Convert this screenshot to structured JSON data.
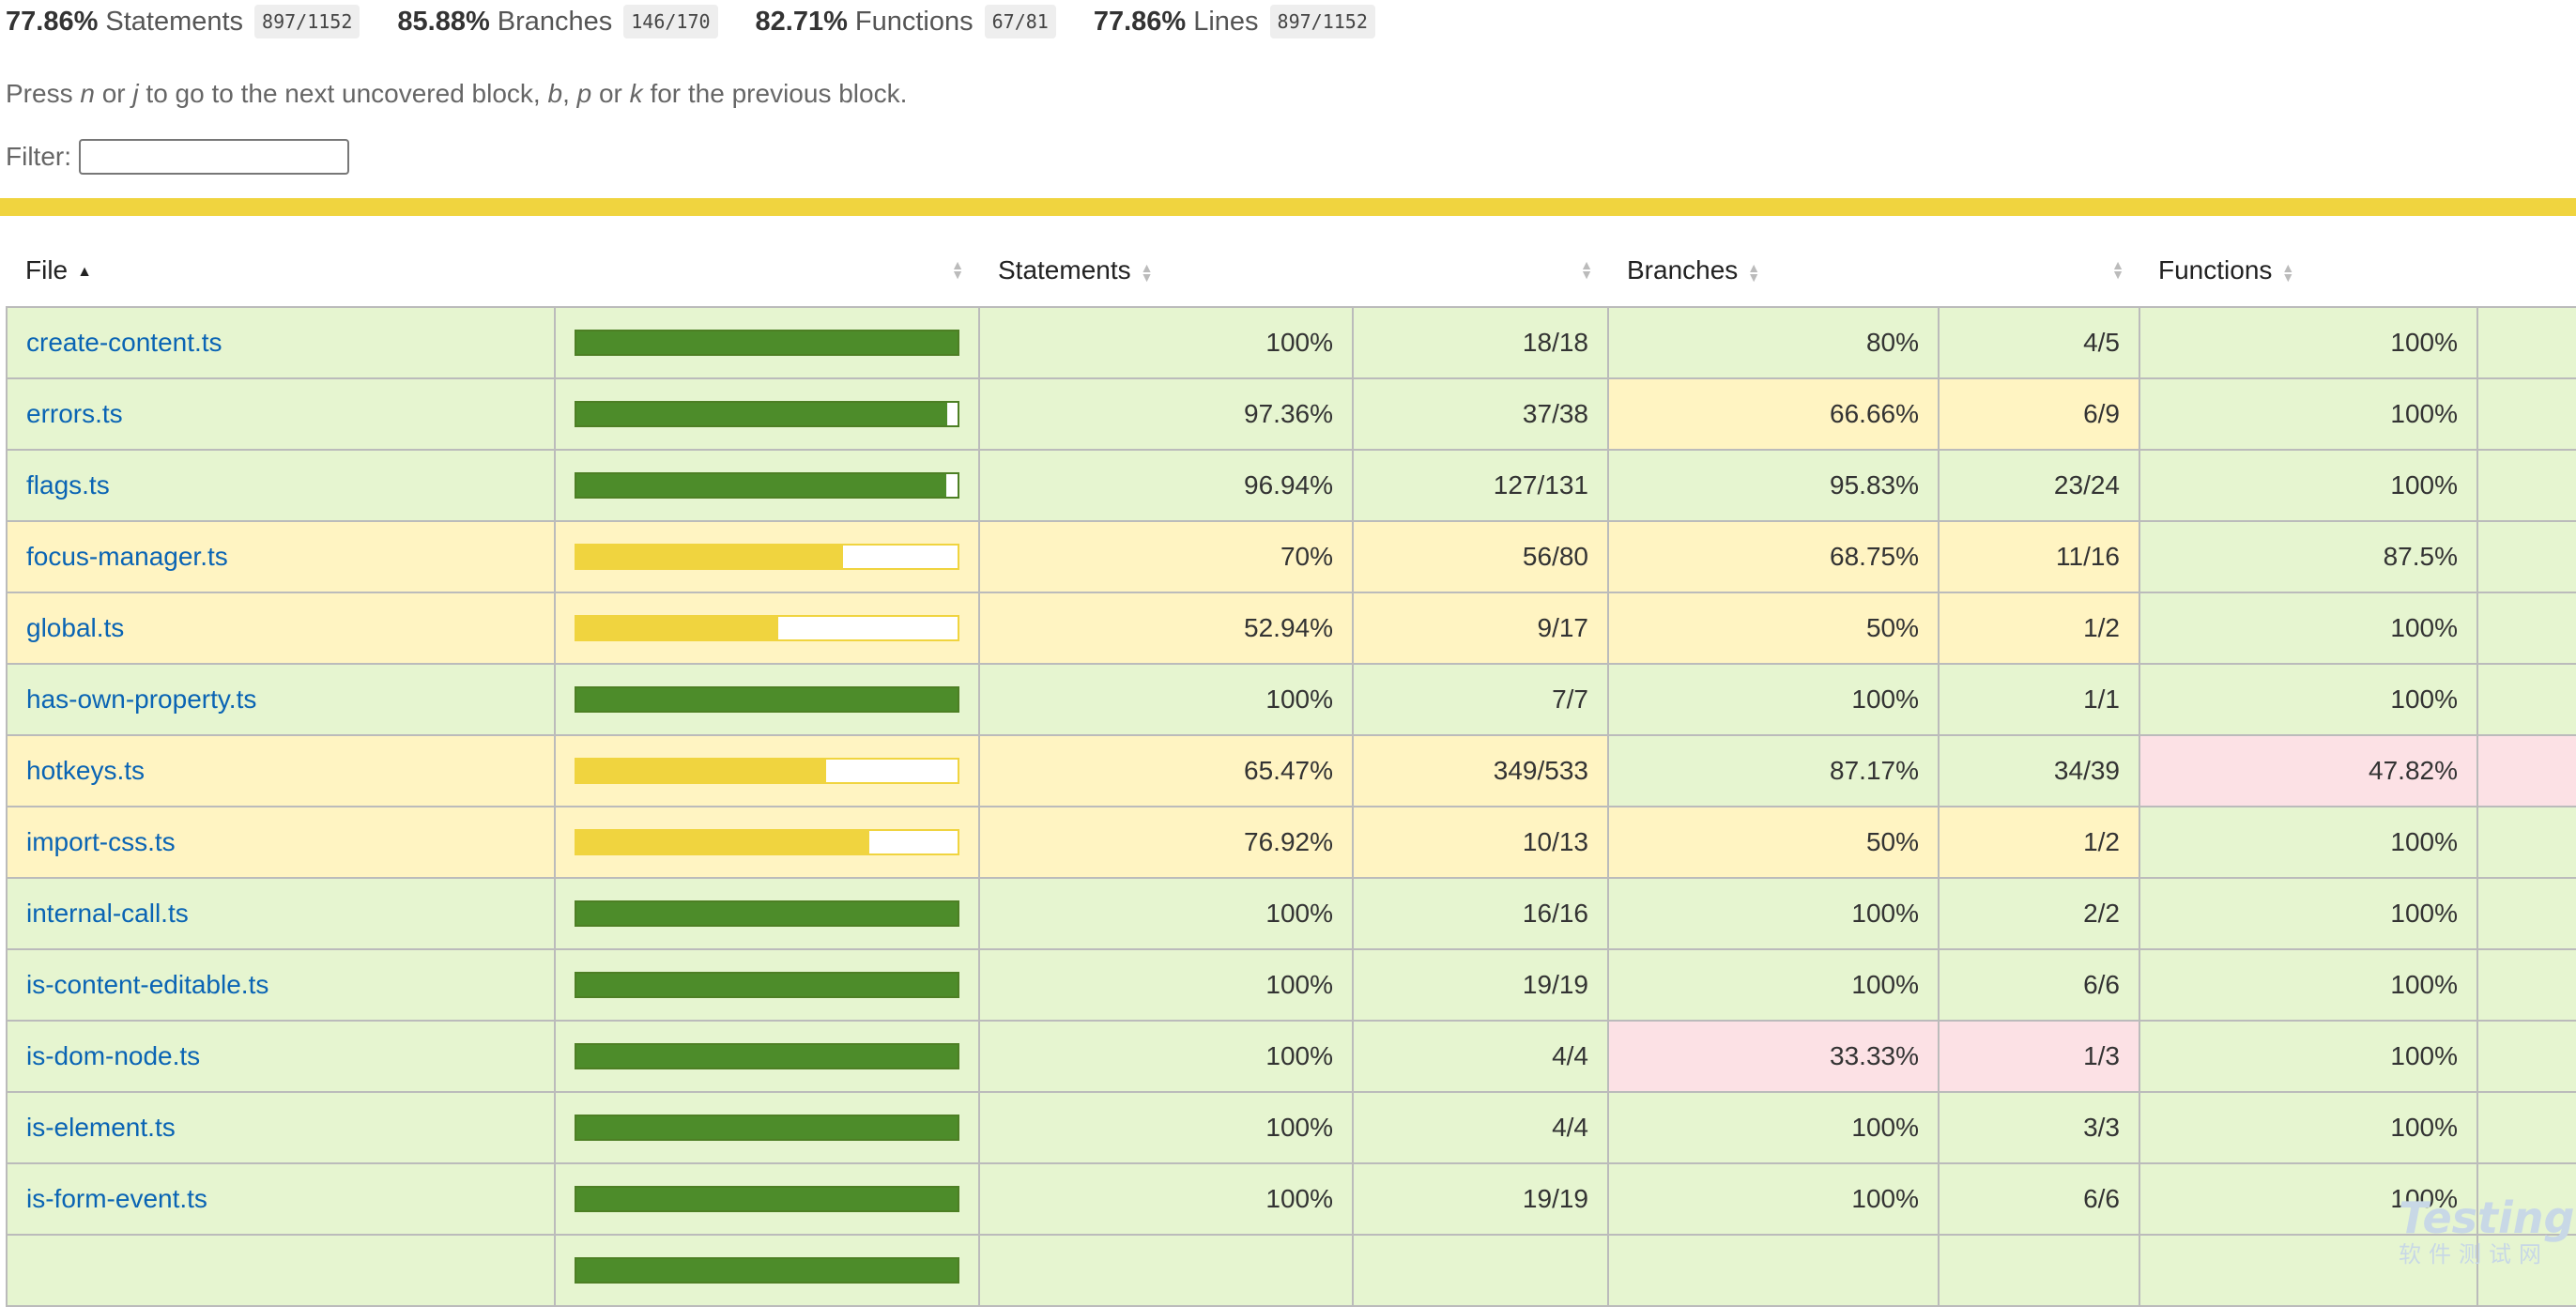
{
  "summary": [
    {
      "pct": "77.86%",
      "label": "Statements",
      "fraction": "897/1152"
    },
    {
      "pct": "85.88%",
      "label": "Branches",
      "fraction": "146/170"
    },
    {
      "pct": "82.71%",
      "label": "Functions",
      "fraction": "67/81"
    },
    {
      "pct": "77.86%",
      "label": "Lines",
      "fraction": "897/1152"
    }
  ],
  "help": {
    "t1": "Press ",
    "k1": "n",
    "t2": " or ",
    "k2": "j",
    "t3": " to go to the next uncovered block, ",
    "k3": "b",
    "t4": ", ",
    "k4": "p",
    "t5": " or ",
    "k5": "k",
    "t6": " for the previous block."
  },
  "filter": {
    "label": "Filter:",
    "value": ""
  },
  "status_color": "#f0d43f",
  "table": {
    "headers": {
      "file": "File",
      "statements": "Statements",
      "branches": "Branches",
      "functions": "Functions"
    },
    "rows": [
      {
        "file": "create-content.ts",
        "level": "high",
        "coverage": 100,
        "stmt_pct": "100%",
        "stmt_frac": "18/18",
        "br_pct": "80%",
        "br_level": "high",
        "br_frac": "4/5",
        "fn_pct": "100%",
        "fn_level": "high"
      },
      {
        "file": "errors.ts",
        "level": "high",
        "coverage": 97.36,
        "stmt_pct": "97.36%",
        "stmt_frac": "37/38",
        "br_pct": "66.66%",
        "br_level": "medium",
        "br_frac": "6/9",
        "fn_pct": "100%",
        "fn_level": "high"
      },
      {
        "file": "flags.ts",
        "level": "high",
        "coverage": 96.94,
        "stmt_pct": "96.94%",
        "stmt_frac": "127/131",
        "br_pct": "95.83%",
        "br_level": "high",
        "br_frac": "23/24",
        "fn_pct": "100%",
        "fn_level": "high"
      },
      {
        "file": "focus-manager.ts",
        "level": "medium",
        "coverage": 70,
        "stmt_pct": "70%",
        "stmt_frac": "56/80",
        "br_pct": "68.75%",
        "br_level": "medium",
        "br_frac": "11/16",
        "fn_pct": "87.5%",
        "fn_level": "high"
      },
      {
        "file": "global.ts",
        "level": "medium",
        "coverage": 52.94,
        "stmt_pct": "52.94%",
        "stmt_frac": "9/17",
        "br_pct": "50%",
        "br_level": "medium",
        "br_frac": "1/2",
        "fn_pct": "100%",
        "fn_level": "high"
      },
      {
        "file": "has-own-property.ts",
        "level": "high",
        "coverage": 100,
        "stmt_pct": "100%",
        "stmt_frac": "7/7",
        "br_pct": "100%",
        "br_level": "high",
        "br_frac": "1/1",
        "fn_pct": "100%",
        "fn_level": "high"
      },
      {
        "file": "hotkeys.ts",
        "level": "medium",
        "coverage": 65.47,
        "stmt_pct": "65.47%",
        "stmt_frac": "349/533",
        "br_pct": "87.17%",
        "br_level": "high",
        "br_frac": "34/39",
        "fn_pct": "47.82%",
        "fn_level": "low"
      },
      {
        "file": "import-css.ts",
        "level": "medium",
        "coverage": 76.92,
        "stmt_pct": "76.92%",
        "stmt_frac": "10/13",
        "br_pct": "50%",
        "br_level": "medium",
        "br_frac": "1/2",
        "fn_pct": "100%",
        "fn_level": "high"
      },
      {
        "file": "internal-call.ts",
        "level": "high",
        "coverage": 100,
        "stmt_pct": "100%",
        "stmt_frac": "16/16",
        "br_pct": "100%",
        "br_level": "high",
        "br_frac": "2/2",
        "fn_pct": "100%",
        "fn_level": "high"
      },
      {
        "file": "is-content-editable.ts",
        "level": "high",
        "coverage": 100,
        "stmt_pct": "100%",
        "stmt_frac": "19/19",
        "br_pct": "100%",
        "br_level": "high",
        "br_frac": "6/6",
        "fn_pct": "100%",
        "fn_level": "high"
      },
      {
        "file": "is-dom-node.ts",
        "level": "high",
        "coverage": 100,
        "stmt_pct": "100%",
        "stmt_frac": "4/4",
        "br_pct": "33.33%",
        "br_level": "low",
        "br_frac": "1/3",
        "fn_pct": "100%",
        "fn_level": "high"
      },
      {
        "file": "is-element.ts",
        "level": "high",
        "coverage": 100,
        "stmt_pct": "100%",
        "stmt_frac": "4/4",
        "br_pct": "100%",
        "br_level": "high",
        "br_frac": "3/3",
        "fn_pct": "100%",
        "fn_level": "high"
      },
      {
        "file": "is-form-event.ts",
        "level": "high",
        "coverage": 100,
        "stmt_pct": "100%",
        "stmt_frac": "19/19",
        "br_pct": "100%",
        "br_level": "high",
        "br_frac": "6/6",
        "fn_pct": "100%",
        "fn_level": "high"
      },
      {
        "file": "",
        "level": "high",
        "coverage": 100,
        "stmt_pct": "",
        "stmt_frac": "",
        "br_pct": "",
        "br_level": "high",
        "br_frac": "",
        "fn_pct": "",
        "fn_level": "high"
      }
    ]
  },
  "watermark": {
    "logo": "Testing",
    "cn": "软件测试网"
  }
}
